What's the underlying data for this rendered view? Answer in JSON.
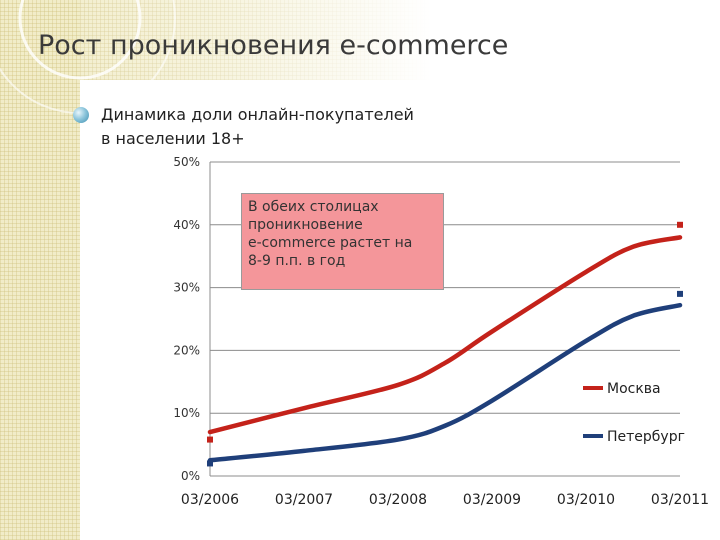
{
  "slide": {
    "title": "Рост проникновения e-commerce",
    "bullet_line1": "Динамика доли онлайн-покупателей",
    "bullet_line2": "в населении 18+"
  },
  "annotation": {
    "line1": "В обеих столицах",
    "line2": "проникновение",
    "line3": "e-commerce растет на",
    "line4": "8-9 п.п. в год"
  },
  "colors": {
    "moscow": "#c4221a",
    "petersburg": "#1f3f7a",
    "annotation_bg": "#f4969a"
  },
  "chart_data": {
    "type": "line",
    "title": "",
    "xlabel": "",
    "ylabel": "",
    "x_ticks": [
      "03/2006",
      "03/2007",
      "03/2008",
      "03/2009",
      "03/2010",
      "03/2011"
    ],
    "y_ticks": [
      "0%",
      "10%",
      "20%",
      "30%",
      "40%",
      "50%"
    ],
    "ylim": [
      0,
      50
    ],
    "grid": "horizontal",
    "legend_position": "right",
    "series": [
      {
        "name": "Москва",
        "color": "#c4221a",
        "points": [
          {
            "x": "03/2006",
            "y": 7
          },
          {
            "x": "03/2007",
            "y": 10.8
          },
          {
            "x": "03/2008",
            "y": 14.5
          },
          {
            "x": "09/2008",
            "y": 18
          },
          {
            "x": "03/2009",
            "y": 23
          },
          {
            "x": "03/2010",
            "y": 32.5
          },
          {
            "x": "09/2010",
            "y": 36.5
          },
          {
            "x": "03/2011",
            "y": 38
          }
        ],
        "markers": [
          {
            "x": "03/2006",
            "y": 5.8
          },
          {
            "x": "03/2011",
            "y": 40
          }
        ]
      },
      {
        "name": "Петербург",
        "color": "#1f3f7a",
        "points": [
          {
            "x": "03/2006",
            "y": 2.5
          },
          {
            "x": "03/2007",
            "y": 4
          },
          {
            "x": "03/2008",
            "y": 5.8
          },
          {
            "x": "09/2008",
            "y": 8
          },
          {
            "x": "03/2009",
            "y": 12
          },
          {
            "x": "03/2010",
            "y": 21.5
          },
          {
            "x": "09/2010",
            "y": 25.5
          },
          {
            "x": "03/2011",
            "y": 27.2
          }
        ],
        "markers": [
          {
            "x": "03/2006",
            "y": 2
          },
          {
            "x": "03/2011",
            "y": 29
          }
        ]
      }
    ]
  }
}
